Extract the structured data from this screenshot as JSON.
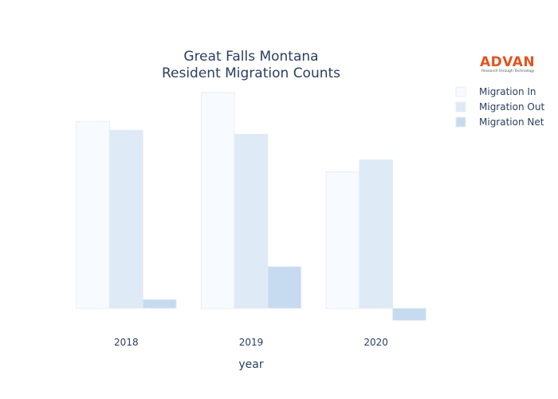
{
  "chart_data": {
    "type": "bar",
    "title_lines": [
      "Great Falls Montana",
      "Resident Migration Counts"
    ],
    "xlabel": "year",
    "ylabel": "",
    "categories": [
      "2018",
      "2019",
      "2020"
    ],
    "series": [
      {
        "name": "Migration In",
        "values": [
          2780,
          3210,
          2030
        ],
        "color": "#f7fbff"
      },
      {
        "name": "Migration Out",
        "values": [
          2650,
          2590,
          2210
        ],
        "color": "#deebf7"
      },
      {
        "name": "Migration Net",
        "values": [
          130,
          620,
          -180
        ],
        "color": "#c6dbef"
      }
    ],
    "ylim": [
      -400,
      3400
    ],
    "grid": false,
    "legend_position": "top-right"
  },
  "logo": {
    "name": "ADVAN",
    "tagline": "Research through Technology"
  }
}
